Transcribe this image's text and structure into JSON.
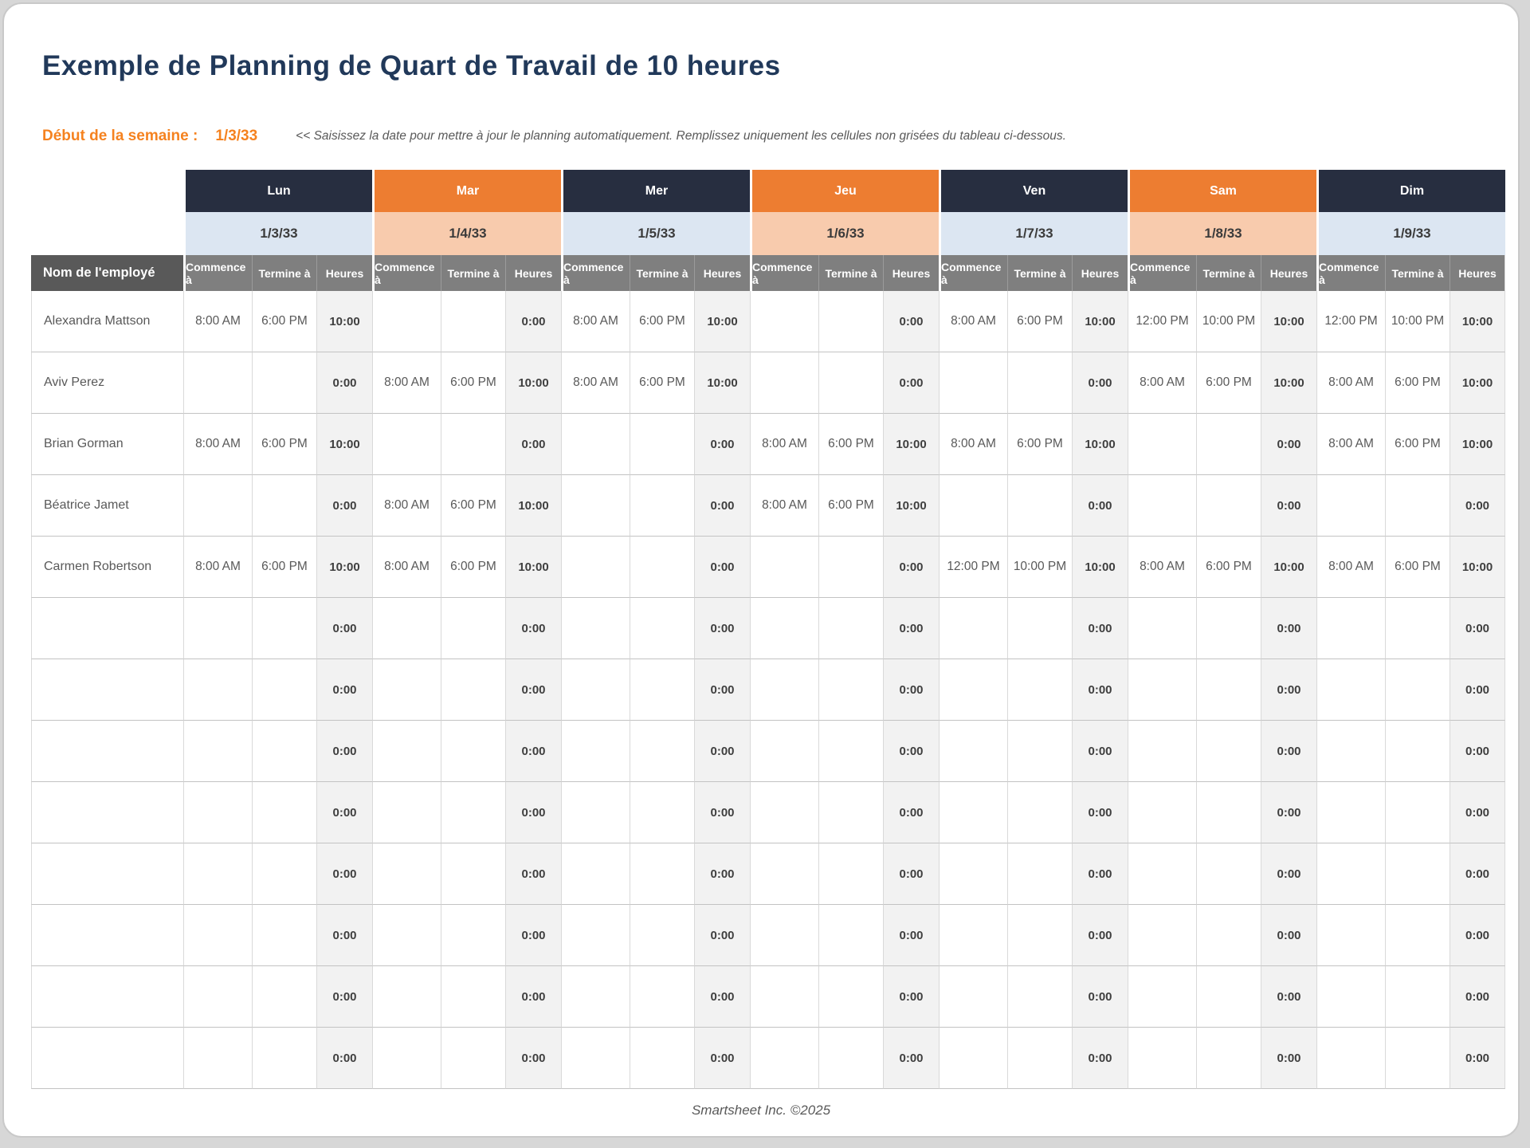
{
  "page": {
    "title": "Exemple de Planning de Quart de Travail de 10 heures",
    "week_start_label": "Début de la semaine :",
    "week_start_value": "1/3/33",
    "instruction": "<< Saisissez la date pour mettre à jour le planning automatiquement. Remplissez uniquement les cellules non grisées du tableau ci-dessous.",
    "footer": "Smartsheet Inc. ©2025"
  },
  "colors": {
    "title_navy": "#21395a",
    "accent_orange": "#f5821f",
    "header_dark": "#272e40",
    "header_orange": "#ed7d31",
    "date_blue": "#dce6f2",
    "date_peach": "#f8cbad",
    "subheader_gray": "#7f7f7f",
    "name_header_gray": "#595959",
    "hours_bg": "#f2f2f2"
  },
  "table": {
    "name_header": "Nom de l'employé",
    "sub_headers": [
      "Commence à",
      "Termine à",
      "Heures"
    ],
    "days": [
      {
        "label": "Lun",
        "date": "1/3/33",
        "theme": "dark"
      },
      {
        "label": "Mar",
        "date": "1/4/33",
        "theme": "orange"
      },
      {
        "label": "Mer",
        "date": "1/5/33",
        "theme": "dark"
      },
      {
        "label": "Jeu",
        "date": "1/6/33",
        "theme": "orange"
      },
      {
        "label": "Ven",
        "date": "1/7/33",
        "theme": "dark"
      },
      {
        "label": "Sam",
        "date": "1/8/33",
        "theme": "orange"
      },
      {
        "label": "Dim",
        "date": "1/9/33",
        "theme": "dark"
      }
    ],
    "rows": [
      {
        "name": "Alexandra Mattson",
        "cells": [
          [
            "8:00 AM",
            "6:00 PM",
            "10:00"
          ],
          [
            "",
            "",
            "0:00"
          ],
          [
            "8:00 AM",
            "6:00 PM",
            "10:00"
          ],
          [
            "",
            "",
            "0:00"
          ],
          [
            "8:00 AM",
            "6:00 PM",
            "10:00"
          ],
          [
            "12:00 PM",
            "10:00 PM",
            "10:00"
          ],
          [
            "12:00 PM",
            "10:00 PM",
            "10:00"
          ]
        ]
      },
      {
        "name": "Aviv Perez",
        "cells": [
          [
            "",
            "",
            "0:00"
          ],
          [
            "8:00 AM",
            "6:00 PM",
            "10:00"
          ],
          [
            "8:00 AM",
            "6:00 PM",
            "10:00"
          ],
          [
            "",
            "",
            "0:00"
          ],
          [
            "",
            "",
            "0:00"
          ],
          [
            "8:00 AM",
            "6:00 PM",
            "10:00"
          ],
          [
            "8:00 AM",
            "6:00 PM",
            "10:00"
          ]
        ]
      },
      {
        "name": "Brian Gorman",
        "cells": [
          [
            "8:00 AM",
            "6:00 PM",
            "10:00"
          ],
          [
            "",
            "",
            "0:00"
          ],
          [
            "",
            "",
            "0:00"
          ],
          [
            "8:00 AM",
            "6:00 PM",
            "10:00"
          ],
          [
            "8:00 AM",
            "6:00 PM",
            "10:00"
          ],
          [
            "",
            "",
            "0:00"
          ],
          [
            "8:00 AM",
            "6:00 PM",
            "10:00"
          ]
        ]
      },
      {
        "name": "Béatrice Jamet",
        "cells": [
          [
            "",
            "",
            "0:00"
          ],
          [
            "8:00 AM",
            "6:00 PM",
            "10:00"
          ],
          [
            "",
            "",
            "0:00"
          ],
          [
            "8:00 AM",
            "6:00 PM",
            "10:00"
          ],
          [
            "",
            "",
            "0:00"
          ],
          [
            "",
            "",
            "0:00"
          ],
          [
            "",
            "",
            "0:00"
          ]
        ]
      },
      {
        "name": "Carmen Robertson",
        "cells": [
          [
            "8:00 AM",
            "6:00 PM",
            "10:00"
          ],
          [
            "8:00 AM",
            "6:00 PM",
            "10:00"
          ],
          [
            "",
            "",
            "0:00"
          ],
          [
            "",
            "",
            "0:00"
          ],
          [
            "12:00 PM",
            "10:00 PM",
            "10:00"
          ],
          [
            "8:00 AM",
            "6:00 PM",
            "10:00"
          ],
          [
            "8:00 AM",
            "6:00 PM",
            "10:00"
          ]
        ]
      },
      {
        "name": "",
        "cells": [
          [
            "",
            "",
            "0:00"
          ],
          [
            "",
            "",
            "0:00"
          ],
          [
            "",
            "",
            "0:00"
          ],
          [
            "",
            "",
            "0:00"
          ],
          [
            "",
            "",
            "0:00"
          ],
          [
            "",
            "",
            "0:00"
          ],
          [
            "",
            "",
            "0:00"
          ]
        ]
      },
      {
        "name": "",
        "cells": [
          [
            "",
            "",
            "0:00"
          ],
          [
            "",
            "",
            "0:00"
          ],
          [
            "",
            "",
            "0:00"
          ],
          [
            "",
            "",
            "0:00"
          ],
          [
            "",
            "",
            "0:00"
          ],
          [
            "",
            "",
            "0:00"
          ],
          [
            "",
            "",
            "0:00"
          ]
        ]
      },
      {
        "name": "",
        "cells": [
          [
            "",
            "",
            "0:00"
          ],
          [
            "",
            "",
            "0:00"
          ],
          [
            "",
            "",
            "0:00"
          ],
          [
            "",
            "",
            "0:00"
          ],
          [
            "",
            "",
            "0:00"
          ],
          [
            "",
            "",
            "0:00"
          ],
          [
            "",
            "",
            "0:00"
          ]
        ]
      },
      {
        "name": "",
        "cells": [
          [
            "",
            "",
            "0:00"
          ],
          [
            "",
            "",
            "0:00"
          ],
          [
            "",
            "",
            "0:00"
          ],
          [
            "",
            "",
            "0:00"
          ],
          [
            "",
            "",
            "0:00"
          ],
          [
            "",
            "",
            "0:00"
          ],
          [
            "",
            "",
            "0:00"
          ]
        ]
      },
      {
        "name": "",
        "cells": [
          [
            "",
            "",
            "0:00"
          ],
          [
            "",
            "",
            "0:00"
          ],
          [
            "",
            "",
            "0:00"
          ],
          [
            "",
            "",
            "0:00"
          ],
          [
            "",
            "",
            "0:00"
          ],
          [
            "",
            "",
            "0:00"
          ],
          [
            "",
            "",
            "0:00"
          ]
        ]
      },
      {
        "name": "",
        "cells": [
          [
            "",
            "",
            "0:00"
          ],
          [
            "",
            "",
            "0:00"
          ],
          [
            "",
            "",
            "0:00"
          ],
          [
            "",
            "",
            "0:00"
          ],
          [
            "",
            "",
            "0:00"
          ],
          [
            "",
            "",
            "0:00"
          ],
          [
            "",
            "",
            "0:00"
          ]
        ]
      },
      {
        "name": "",
        "cells": [
          [
            "",
            "",
            "0:00"
          ],
          [
            "",
            "",
            "0:00"
          ],
          [
            "",
            "",
            "0:00"
          ],
          [
            "",
            "",
            "0:00"
          ],
          [
            "",
            "",
            "0:00"
          ],
          [
            "",
            "",
            "0:00"
          ],
          [
            "",
            "",
            "0:00"
          ]
        ]
      },
      {
        "name": "",
        "cells": [
          [
            "",
            "",
            "0:00"
          ],
          [
            "",
            "",
            "0:00"
          ],
          [
            "",
            "",
            "0:00"
          ],
          [
            "",
            "",
            "0:00"
          ],
          [
            "",
            "",
            "0:00"
          ],
          [
            "",
            "",
            "0:00"
          ],
          [
            "",
            "",
            "0:00"
          ]
        ]
      }
    ]
  }
}
